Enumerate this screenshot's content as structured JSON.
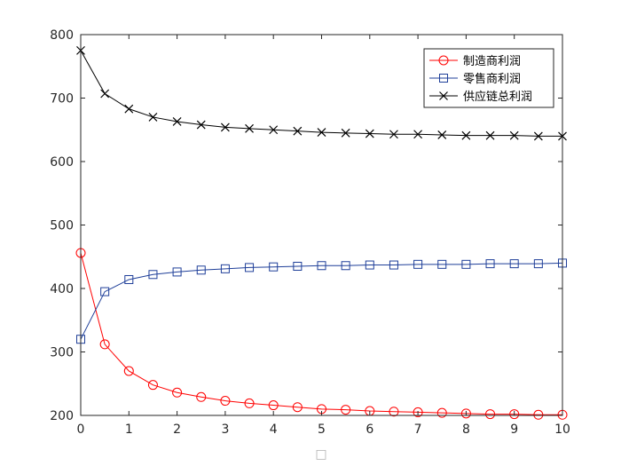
{
  "chart_data": {
    "type": "line",
    "title": "",
    "xlabel": "",
    "ylabel": "",
    "xlim": [
      0,
      10
    ],
    "ylim": [
      200,
      800
    ],
    "xticks": [
      0,
      1,
      2,
      3,
      4,
      5,
      6,
      7,
      8,
      9,
      10
    ],
    "yticks": [
      200,
      300,
      400,
      500,
      600,
      700,
      800
    ],
    "grid": false,
    "box": true,
    "legend_position": "top-right",
    "x": [
      0,
      0.5,
      1,
      1.5,
      2,
      2.5,
      3,
      3.5,
      4,
      4.5,
      5,
      5.5,
      6,
      6.5,
      7,
      7.5,
      8,
      8.5,
      9,
      9.5,
      10
    ],
    "series": [
      {
        "name": "制造商利润",
        "color": "#ff0000",
        "marker": "circle",
        "values": [
          456,
          312,
          270,
          248,
          236,
          229,
          223,
          219,
          216,
          213,
          210,
          209,
          207,
          206,
          205,
          204,
          203,
          202,
          202,
          201,
          201
        ]
      },
      {
        "name": "零售商利润",
        "color": "#1f3f99",
        "marker": "square",
        "values": [
          320,
          395,
          414,
          422,
          426,
          429,
          431,
          433,
          434,
          435,
          436,
          436,
          437,
          437,
          438,
          438,
          438,
          439,
          439,
          439,
          440
        ]
      },
      {
        "name": "供应链总利润",
        "color": "#000000",
        "marker": "x",
        "values": [
          775,
          707,
          683,
          670,
          663,
          658,
          654,
          652,
          650,
          648,
          646,
          645,
          644,
          643,
          643,
          642,
          641,
          641,
          641,
          640,
          640
        ]
      }
    ],
    "xlabel_glyph": "□"
  }
}
